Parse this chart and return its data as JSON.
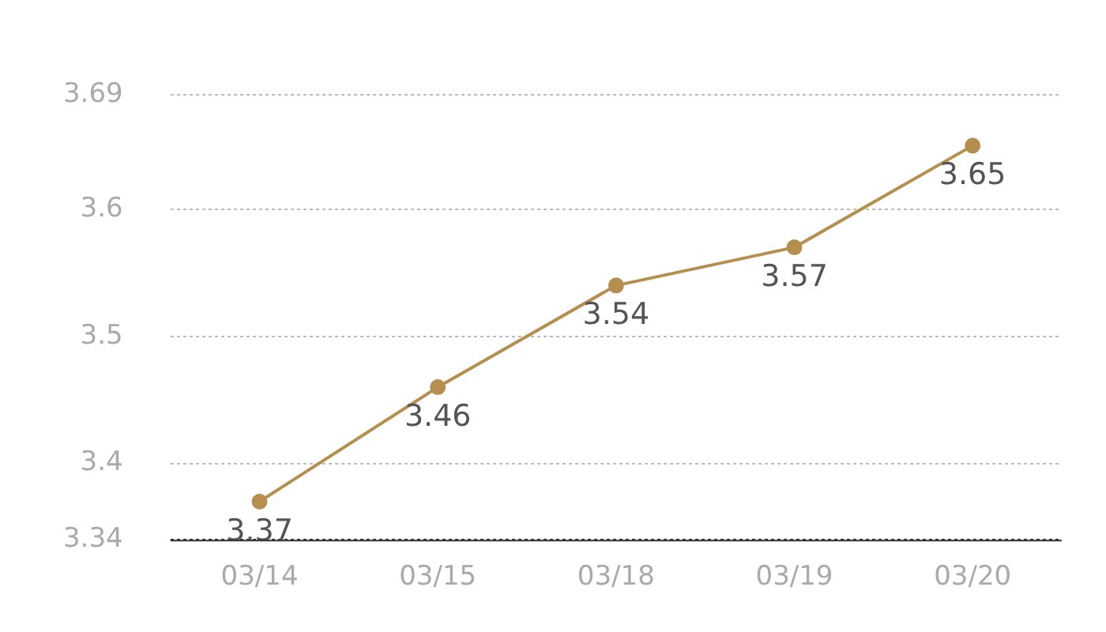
{
  "chart_data": {
    "type": "line",
    "categories": [
      "03/14",
      "03/15",
      "03/18",
      "03/19",
      "03/20"
    ],
    "series": [
      {
        "color": "#b58f4f",
        "values": [
          3.37,
          3.46,
          3.54,
          3.57,
          3.65
        ]
      }
    ],
    "ylim": [
      3.34,
      3.69
    ],
    "yticks": [
      3.34,
      3.4,
      3.5,
      3.6,
      3.69
    ],
    "grid": "y",
    "marker": "circle",
    "line_style": "solid",
    "data_labels": true,
    "legend": false
  }
}
